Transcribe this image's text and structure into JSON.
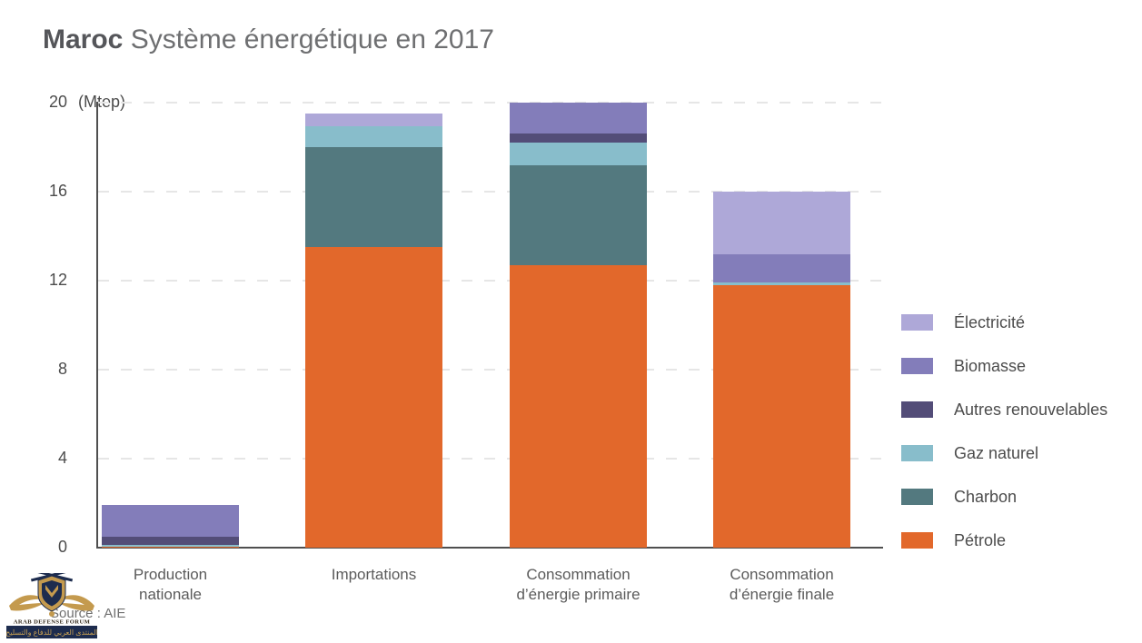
{
  "header": {
    "title_bold": "Maroc",
    "title_regular": "Système énergétique en 2017"
  },
  "source_text": "Source : AIE",
  "watermark": {
    "line1": "ARAB DEFENSE FORUM",
    "line2": "المنتدى العربي للدفاع والتسليح"
  },
  "chart_data": {
    "type": "bar",
    "stacked": true,
    "title": "Maroc Système énergétique en 2017",
    "unit_label": "(Mtep)",
    "ylabel": "Mtep",
    "ylim": [
      0,
      20
    ],
    "yticks": [
      0,
      4,
      8,
      12,
      16,
      20
    ],
    "grid": "horizontal dashed",
    "legend_position": "right",
    "series": {
      "petrole": {
        "name": "Pétrole",
        "color": "#e2682b"
      },
      "charbon": {
        "name": "Charbon",
        "color": "#53797f"
      },
      "gaz": {
        "name": "Gaz naturel",
        "color": "#88bdcb"
      },
      "autres": {
        "name": "Autres renouvelables",
        "color": "#534d78"
      },
      "biomasse": {
        "name": "Biomasse",
        "color": "#837dba"
      },
      "electricite": {
        "name": "Électricité",
        "color": "#aea8d8"
      }
    },
    "legend_order": [
      "electricite",
      "biomasse",
      "autres",
      "gaz",
      "charbon",
      "petrole"
    ],
    "categories": [
      {
        "label_lines": [
          "Production",
          "nationale"
        ],
        "total": 1.9,
        "segments": [
          [
            "petrole",
            0.05
          ],
          [
            "gaz",
            0.08
          ],
          [
            "autres",
            0.37
          ],
          [
            "biomasse",
            1.4
          ]
        ]
      },
      {
        "label_lines": [
          "Importations"
        ],
        "total": 19.5,
        "segments": [
          [
            "petrole",
            13.5
          ],
          [
            "charbon",
            4.5
          ],
          [
            "gaz",
            0.95
          ],
          [
            "electricite",
            0.55
          ]
        ]
      },
      {
        "label_lines": [
          "Consommation",
          "d’énergie primaire"
        ],
        "total": 20.0,
        "segments": [
          [
            "petrole",
            12.7
          ],
          [
            "charbon",
            4.5
          ],
          [
            "gaz",
            1.0
          ],
          [
            "autres",
            0.4
          ],
          [
            "biomasse",
            1.4
          ]
        ]
      },
      {
        "label_lines": [
          "Consommation",
          "d’énergie finale"
        ],
        "total": 16.0,
        "segments": [
          [
            "petrole",
            11.8
          ],
          [
            "gaz",
            0.1
          ],
          [
            "biomasse",
            1.3
          ],
          [
            "electricite",
            2.8
          ]
        ]
      }
    ]
  }
}
